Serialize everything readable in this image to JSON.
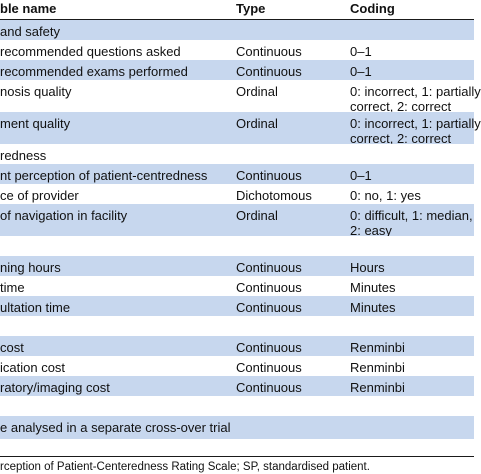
{
  "header": {
    "col1": "ble name",
    "col2": "Type",
    "col3": "Coding"
  },
  "rows": [
    {
      "c1": "and safety",
      "c2": "",
      "c3": "",
      "bg": "blue"
    },
    {
      "c1": "recommended questions asked",
      "c2": "Continuous",
      "c3": "0–1",
      "bg": "white"
    },
    {
      "c1": "recommended exams performed",
      "c2": "Continuous",
      "c3": "0–1",
      "bg": "blue"
    },
    {
      "c1": "nosis quality",
      "c2": "Ordinal",
      "c3": "0: incorrect, 1: partially",
      "c3b": "correct, 2: correct",
      "bg": "white"
    },
    {
      "c1": "ment quality",
      "c2": "Ordinal",
      "c3": "0: incorrect, 1: partially",
      "c3b": "correct, 2: correct",
      "bg": "blue"
    },
    {
      "c1": "redness",
      "c2": "",
      "c3": "",
      "bg": "white"
    },
    {
      "c1": "nt perception of patient-centredness",
      "c2": "Continuous",
      "c3": "0–1",
      "bg": "blue"
    },
    {
      "c1": "ce of provider",
      "c2": "Dichotomous",
      "c3": "0: no, 1: yes",
      "bg": "white"
    },
    {
      "c1": "of navigation in facility",
      "c2": "Ordinal",
      "c3": "0: difficult, 1: median,",
      "c3b": "2: easy",
      "bg": "blue"
    },
    {
      "c1": "",
      "c2": "",
      "c3": "",
      "bg": "white"
    },
    {
      "c1": "ning hours",
      "c2": "Continuous",
      "c3": "Hours",
      "bg": "blue"
    },
    {
      "c1": "time",
      "c2": "Continuous",
      "c3": "Minutes",
      "bg": "white"
    },
    {
      "c1": "ultation time",
      "c2": "Continuous",
      "c3": "Minutes",
      "bg": "blue"
    },
    {
      "c1": "",
      "c2": "",
      "c3": "",
      "bg": "white"
    },
    {
      "c1": "cost",
      "c2": "Continuous",
      "c3": "Renminbi",
      "bg": "blue"
    },
    {
      "c1": "ication cost",
      "c2": "Continuous",
      "c3": "Renminbi",
      "bg": "white"
    },
    {
      "c1": "ratory/imaging cost",
      "c2": "Continuous",
      "c3": "Renminbi",
      "bg": "blue"
    },
    {
      "c1": "",
      "c2": "",
      "c3": "",
      "bg": "white"
    },
    {
      "c1": "e analysed in a separate cross-over trial",
      "c2": "",
      "c3": "",
      "bg": "blue"
    }
  ],
  "footnote": "rception of Patient-Centeredness Rating Scale; SP, standardised patient."
}
